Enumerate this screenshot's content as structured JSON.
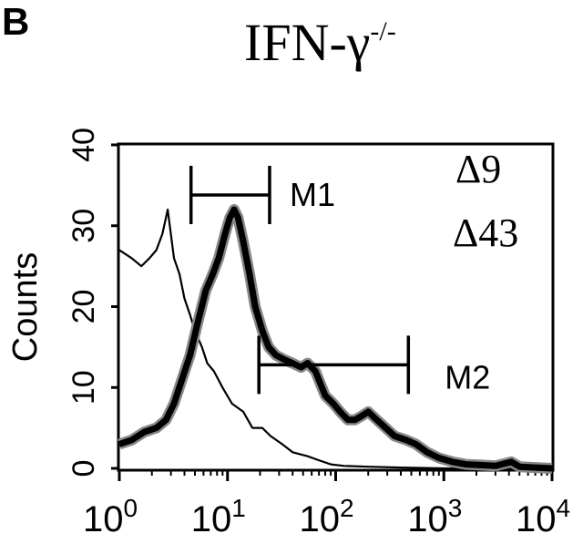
{
  "panel": {
    "letter": "B",
    "title_main": "IFN-γ",
    "title_sup": "-/-"
  },
  "chart_data": {
    "type": "histogram",
    "ylabel": "Counts",
    "x_scale": "log",
    "xlim": [
      1,
      10000
    ],
    "ylim": [
      0,
      40
    ],
    "y_ticks": [
      "0",
      "10",
      "20",
      "30",
      "40"
    ],
    "x_ticks": [
      {
        "base": "10",
        "exp": "0"
      },
      {
        "base": "10",
        "exp": "1"
      },
      {
        "base": "10",
        "exp": "2"
      },
      {
        "base": "10",
        "exp": "3"
      },
      {
        "base": "10",
        "exp": "4"
      }
    ],
    "series": [
      {
        "name": "Δ9",
        "style": "thin",
        "color": "#000000",
        "points": [
          [
            1.0,
            27
          ],
          [
            1.3,
            26
          ],
          [
            1.6,
            25
          ],
          [
            1.9,
            26
          ],
          [
            2.2,
            27
          ],
          [
            2.5,
            29
          ],
          [
            2.8,
            32
          ],
          [
            3.2,
            26
          ],
          [
            3.6,
            24
          ],
          [
            4.0,
            21
          ],
          [
            4.5,
            19
          ],
          [
            5.0,
            17
          ],
          [
            5.8,
            15
          ],
          [
            6.5,
            13
          ],
          [
            7.5,
            12
          ],
          [
            9.0,
            10
          ],
          [
            11,
            8
          ],
          [
            14,
            7
          ],
          [
            17,
            5
          ],
          [
            21,
            5
          ],
          [
            25,
            4
          ],
          [
            32,
            3
          ],
          [
            40,
            2
          ],
          [
            55,
            1.5
          ],
          [
            70,
            1
          ],
          [
            90,
            0.5
          ],
          [
            120,
            0.3
          ],
          [
            200,
            0.2
          ],
          [
            400,
            0.1
          ],
          [
            1000,
            0
          ],
          [
            10000,
            0
          ]
        ]
      },
      {
        "name": "Δ43",
        "style": "thick",
        "color": "#000000",
        "points": [
          [
            1.0,
            3
          ],
          [
            1.3,
            3.5
          ],
          [
            1.7,
            4.5
          ],
          [
            2.2,
            5
          ],
          [
            2.7,
            6
          ],
          [
            3.2,
            8
          ],
          [
            3.8,
            11
          ],
          [
            4.5,
            14
          ],
          [
            5.3,
            18
          ],
          [
            6.3,
            22
          ],
          [
            7.3,
            24
          ],
          [
            8.3,
            26
          ],
          [
            9.5,
            29
          ],
          [
            10.5,
            31
          ],
          [
            11.5,
            32
          ],
          [
            12.5,
            31
          ],
          [
            14,
            28
          ],
          [
            16,
            24
          ],
          [
            18,
            20
          ],
          [
            21,
            17
          ],
          [
            24,
            15
          ],
          [
            28,
            14
          ],
          [
            33,
            13.5
          ],
          [
            40,
            13
          ],
          [
            48,
            12.5
          ],
          [
            55,
            13
          ],
          [
            65,
            12
          ],
          [
            80,
            9
          ],
          [
            95,
            8
          ],
          [
            110,
            7
          ],
          [
            130,
            6
          ],
          [
            150,
            6
          ],
          [
            175,
            6.5
          ],
          [
            200,
            7
          ],
          [
            240,
            6
          ],
          [
            290,
            5
          ],
          [
            350,
            4
          ],
          [
            450,
            3.5
          ],
          [
            550,
            3
          ],
          [
            700,
            2
          ],
          [
            900,
            1.3
          ],
          [
            1200,
            0.8
          ],
          [
            1600,
            0.5
          ],
          [
            2200,
            0.4
          ],
          [
            3000,
            0.3
          ],
          [
            4200,
            0.8
          ],
          [
            5000,
            0.2
          ],
          [
            7000,
            0.1
          ],
          [
            10000,
            0
          ]
        ]
      }
    ],
    "markers": [
      {
        "label": "M1",
        "x_start": 4.6,
        "x_end": 24.5,
        "y": 33.8
      },
      {
        "label": "M2",
        "x_start": 19.5,
        "x_end": 470,
        "y": 12.8
      }
    ],
    "legend": [
      "Δ9",
      "Δ43"
    ],
    "legend_position": "top-right"
  }
}
